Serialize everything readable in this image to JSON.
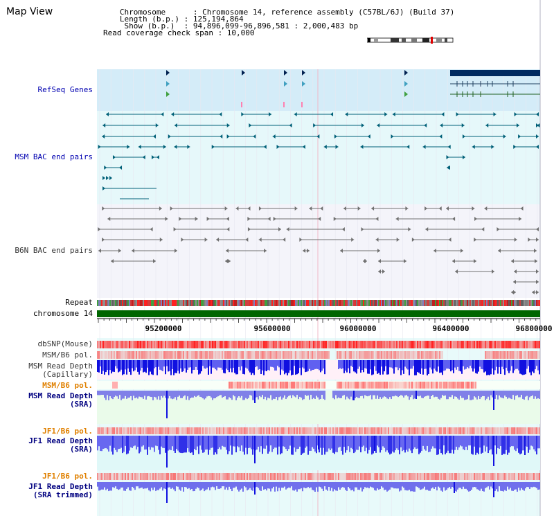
{
  "page": {
    "title": "Map View"
  },
  "info": {
    "chromosome_line": "   Chromosome      : Chromosome 14, reference assembly (C57BL/6J) (Build 37)",
    "length_line": "   Length (b.p.) : 125,194,864",
    "show_line": "    Show (b.p.)  : 94,896,099-96,896,581 : 2,000,483 bp",
    "coverage_line": "Read coverage check span : 10,000"
  },
  "tracks": {
    "refseq": "RefSeq Genes",
    "msm_bac": "MSM BAC end pairs",
    "b6n_bac": "B6N BAC end pairs",
    "repeat": "Repeat",
    "chromosome": "chromosome 14",
    "dbsnp": "dbSNP(Mouse)",
    "msm_b6_pol_1": "MSM/B6 pol.",
    "msm_read_depth_cap": "MSM Read Depth\n(Capillary)",
    "msm_b6_pol_2": "MSM/B6 pol.",
    "msm_read_depth_sra": "MSM Read Depth\n(SRA)",
    "jf1_b6_pol_1": "JF1/B6 pol.",
    "jf1_read_depth_sra": "JF1 Read Depth\n(SRA)",
    "jf1_b6_pol_2": "JF1/B6 pol.",
    "jf1_read_depth_trim": "JF1 Read Depth\n(SRA trimmed)"
  },
  "axis": {
    "ticks": [
      "95200000",
      "95600000",
      "96000000",
      "96400000",
      "96800000"
    ]
  },
  "colors": {
    "refseq_bg": "#d4ecf8",
    "msm_bac_bg": "#e6f8fa",
    "b6n_bac_bg": "#f4f4fa",
    "chromosome": "#006600",
    "depth_blue": "#2020e0",
    "snp_red": "#ff3030"
  }
}
